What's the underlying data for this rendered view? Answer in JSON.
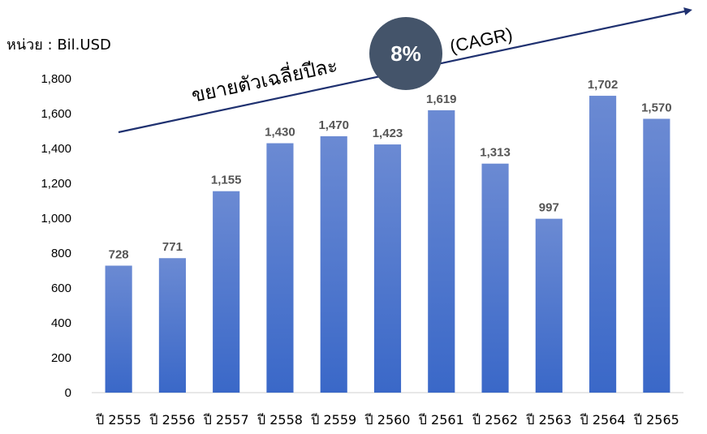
{
  "unit_label": "หน่วย : Bil.USD",
  "colors": {
    "bar_light": "#6b8ad3",
    "bar_dark": "#3a68c8",
    "circle": "#44546a",
    "arrow": "#1f3170"
  },
  "cagr": {
    "label": "ขยายตัวเฉลี่ยปีละ",
    "value": "8%",
    "suffix": "(CAGR)"
  },
  "chart_data": {
    "type": "bar",
    "categories": [
      "ปี 2555",
      "ปี 2556",
      "ปี 2557",
      "ปี 2558",
      "ปี 2559",
      "ปี 2560",
      "ปี 2561",
      "ปี 2562",
      "ปี 2563",
      "ปี 2564",
      "ปี 2565"
    ],
    "values": [
      728,
      771,
      1155,
      1430,
      1470,
      1423,
      1619,
      1313,
      997,
      1702,
      1570
    ],
    "data_labels": [
      "728",
      "771",
      "1,155",
      "1,430",
      "1,470",
      "1,423",
      "1,619",
      "1,313",
      "997",
      "1,702",
      "1,570"
    ],
    "ylim": [
      0,
      1800
    ],
    "yticks": [
      "0",
      "200",
      "400",
      "600",
      "800",
      "1,000",
      "1,200",
      "1,400",
      "1,600",
      "1,800"
    ],
    "grid": false,
    "legend": "none"
  }
}
